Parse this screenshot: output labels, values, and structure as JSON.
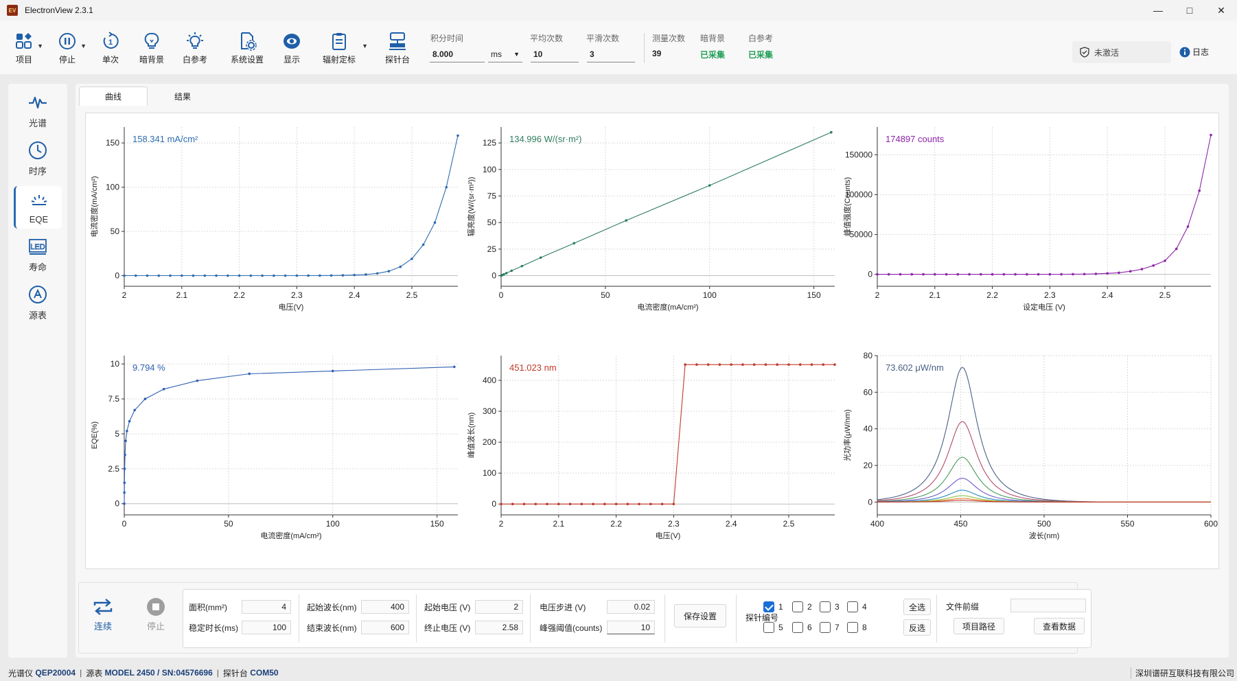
{
  "window": {
    "title": "ElectronView 2.3.1",
    "logo_text": "EV"
  },
  "toolbar": {
    "items": [
      {
        "label": "项目",
        "icon": "grid-icon"
      },
      {
        "label": "停止",
        "icon": "pause-icon"
      },
      {
        "label": "单次",
        "icon": "single-icon"
      },
      {
        "label": "暗背景",
        "icon": "bulb-off-icon"
      },
      {
        "label": "白参考",
        "icon": "bulb-on-icon"
      },
      {
        "label": "系统设置",
        "icon": "settings-doc-icon"
      },
      {
        "label": "显示",
        "icon": "eye-icon"
      },
      {
        "label": "辐射定标",
        "icon": "clipboard-icon"
      },
      {
        "label": "探针台",
        "icon": "probe-station-icon"
      }
    ],
    "integration_time": {
      "label": "积分时间",
      "value": "8.000",
      "unit": "ms"
    },
    "average_count": {
      "label": "平均次数",
      "value": "10"
    },
    "smooth_count": {
      "label": "平滑次数",
      "value": "3"
    },
    "measure_count": {
      "label": "测量次数",
      "value": "39"
    },
    "dark_bg": {
      "label": "暗背景",
      "value": "已采集"
    },
    "white_ref": {
      "label": "白参考",
      "value": "已采集"
    },
    "license": {
      "label": "未激活"
    },
    "log": {
      "label": "日志"
    }
  },
  "nav": [
    {
      "label": "光谱",
      "icon": "spectrum-icon"
    },
    {
      "label": "时序",
      "icon": "clock-icon"
    },
    {
      "label": "EQE",
      "icon": "eqe-icon",
      "active": true
    },
    {
      "label": "寿命",
      "icon": "led-icon"
    },
    {
      "label": "源表",
      "icon": "source-meter-icon"
    }
  ],
  "tabs": [
    {
      "label": "曲线",
      "active": true
    },
    {
      "label": "结果",
      "active": false
    }
  ],
  "chart_data": [
    {
      "type": "line",
      "color": "#2b6cb0",
      "readout": "158.341 mA/cm²",
      "xlabel": "电压(V)",
      "ylabel": "电流密度(mA/cm²)",
      "xlim": [
        2,
        2.58
      ],
      "ylim": [
        -12,
        168
      ],
      "xticks": [
        2,
        2.1,
        2.2,
        2.3,
        2.4,
        2.5
      ],
      "yticks": [
        0,
        50,
        100,
        150
      ],
      "xtick_labels": [
        "2",
        "2.1",
        "2.2",
        "2.3",
        "2.4",
        "2.5"
      ],
      "ytick_labels": [
        "0",
        "50",
        "100",
        "150"
      ],
      "x": [
        2,
        2.02,
        2.04,
        2.06,
        2.08,
        2.1,
        2.12,
        2.14,
        2.16,
        2.18,
        2.2,
        2.22,
        2.24,
        2.26,
        2.28,
        2.3,
        2.32,
        2.34,
        2.36,
        2.38,
        2.4,
        2.42,
        2.44,
        2.46,
        2.48,
        2.5,
        2.52,
        2.54,
        2.56,
        2.58
      ],
      "y": [
        0,
        0,
        0,
        0,
        0,
        0,
        0,
        0,
        0,
        0,
        0,
        0,
        0,
        0,
        0,
        0.02,
        0.05,
        0.1,
        0.2,
        0.35,
        0.7,
        1.3,
        2.5,
        5,
        10,
        19,
        35,
        60,
        100,
        158.3
      ]
    },
    {
      "type": "line",
      "color": "#2e7d5e",
      "readout": "134.996 W/(sr·m²)",
      "xlabel": "电流密度(mA/cm²)",
      "ylabel": "辐亮度(W/(sr·m²))",
      "xlim": [
        0,
        160
      ],
      "ylim": [
        -10,
        140
      ],
      "xticks": [
        0,
        50,
        100,
        150
      ],
      "yticks": [
        0,
        25,
        50,
        75,
        100,
        125
      ],
      "xtick_labels": [
        "0",
        "50",
        "100",
        "150"
      ],
      "ytick_labels": [
        "0",
        "25",
        "50",
        "75",
        "100",
        "125"
      ],
      "x": [
        0,
        0.5,
        1.3,
        2.5,
        5,
        10,
        19,
        35,
        60,
        100,
        158.3
      ],
      "y": [
        0,
        0.5,
        1.2,
        2.3,
        4.6,
        9,
        17,
        30.5,
        52,
        85,
        135
      ]
    },
    {
      "type": "line",
      "color": "#8e24aa",
      "readout": "174897 counts",
      "xlabel": "设定电压 (V)",
      "ylabel": "峰值强度(Counts)",
      "xlim": [
        2,
        2.58
      ],
      "ylim": [
        -15000,
        185000
      ],
      "xticks": [
        2,
        2.1,
        2.2,
        2.3,
        2.4,
        2.5
      ],
      "yticks": [
        0,
        50000,
        100000,
        150000
      ],
      "xtick_labels": [
        "2",
        "2.1",
        "2.2",
        "2.3",
        "2.4",
        "2.5"
      ],
      "ytick_labels": [
        "0",
        "50000",
        "100000",
        "150000"
      ],
      "x": [
        2,
        2.02,
        2.04,
        2.06,
        2.08,
        2.1,
        2.12,
        2.14,
        2.16,
        2.18,
        2.2,
        2.22,
        2.24,
        2.26,
        2.28,
        2.3,
        2.32,
        2.34,
        2.36,
        2.38,
        2.4,
        2.42,
        2.44,
        2.46,
        2.48,
        2.5,
        2.52,
        2.54,
        2.56,
        2.58
      ],
      "y": [
        0,
        0,
        0,
        0,
        0,
        0,
        0,
        0,
        0,
        0,
        0,
        0,
        0,
        0,
        0,
        30,
        70,
        150,
        300,
        600,
        1200,
        2000,
        3800,
        6500,
        11000,
        17000,
        32000,
        60000,
        105000,
        174897
      ]
    },
    {
      "type": "line",
      "color": "#2f5fb3",
      "readout": "9.794 %",
      "xlabel": "电流密度(mA/cm²)",
      "ylabel": "EQE(%)",
      "xlim": [
        0,
        160
      ],
      "ylim": [
        -0.8,
        10.6
      ],
      "xticks": [
        0,
        50,
        100,
        150
      ],
      "yticks": [
        0,
        2.5,
        5,
        7.5,
        10
      ],
      "xtick_labels": [
        "0",
        "50",
        "100",
        "150"
      ],
      "ytick_labels": [
        "0",
        "2.5",
        "5",
        "7.5",
        "10"
      ],
      "x": [
        0,
        0.05,
        0.1,
        0.2,
        0.35,
        0.7,
        1.3,
        2.5,
        5,
        10,
        19,
        35,
        60,
        100,
        158.3
      ],
      "y": [
        0,
        0.8,
        1.5,
        2.5,
        3.5,
        4.5,
        5.2,
        5.9,
        6.7,
        7.5,
        8.2,
        8.8,
        9.3,
        9.5,
        9.794
      ]
    },
    {
      "type": "line",
      "color": "#c0392b",
      "readout": "451.023 nm",
      "xlabel": "电压(V)",
      "ylabel": "峰值波长(nm)",
      "xlim": [
        2,
        2.58
      ],
      "ylim": [
        -35,
        480
      ],
      "xticks": [
        2,
        2.1,
        2.2,
        2.3,
        2.4,
        2.5
      ],
      "yticks": [
        0,
        100,
        200,
        300,
        400
      ],
      "xtick_labels": [
        "2",
        "2.1",
        "2.2",
        "2.3",
        "2.4",
        "2.5"
      ],
      "ytick_labels": [
        "0",
        "100",
        "200",
        "300",
        "400"
      ],
      "x": [
        2,
        2.02,
        2.04,
        2.06,
        2.08,
        2.1,
        2.12,
        2.14,
        2.16,
        2.18,
        2.2,
        2.22,
        2.24,
        2.26,
        2.28,
        2.3,
        2.32,
        2.34,
        2.36,
        2.38,
        2.4,
        2.42,
        2.44,
        2.46,
        2.48,
        2.5,
        2.52,
        2.54,
        2.56,
        2.58
      ],
      "y": [
        0,
        0,
        0,
        0,
        0,
        0,
        0,
        0,
        0,
        0,
        0,
        0,
        0,
        0,
        0,
        0,
        451,
        451,
        451,
        451,
        451,
        451,
        451,
        451,
        451,
        451,
        451,
        451,
        451,
        451
      ]
    },
    {
      "type": "line",
      "readout": "73.602 μW/nm",
      "xlabel": "波长(nm)",
      "ylabel": "光功率(μW/nm)",
      "xlim": [
        400,
        600
      ],
      "ylim": [
        -7,
        80
      ],
      "xticks": [
        400,
        450,
        500,
        550,
        600
      ],
      "yticks": [
        0,
        20,
        40,
        60,
        80
      ],
      "xtick_labels": [
        "400",
        "450",
        "500",
        "550",
        "600"
      ],
      "ytick_labels": [
        "0",
        "20",
        "40",
        "60",
        "80"
      ],
      "peak_x": 451,
      "peak_width": 12,
      "series": [
        {
          "peak": 73.6,
          "color": "#4a5e85"
        },
        {
          "peak": 44,
          "color": "#b24a6b"
        },
        {
          "peak": 24.5,
          "color": "#4a9a5a"
        },
        {
          "peak": 13,
          "color": "#6a5acd"
        },
        {
          "peak": 6.5,
          "color": "#2b8cbe"
        },
        {
          "peak": 3.5,
          "color": "#8bc34a"
        },
        {
          "peak": 2,
          "color": "#e67e22"
        },
        {
          "peak": 1,
          "color": "#c0392b"
        }
      ]
    }
  ],
  "bottom": {
    "continuous": "连续",
    "stop": "停止",
    "area": {
      "label": "面积(mm²)",
      "value": "4"
    },
    "stable_time": {
      "label": "稳定时长(ms)",
      "value": "100"
    },
    "start_wl": {
      "label": "起始波长(nm)",
      "value": "400"
    },
    "end_wl": {
      "label": "结束波长(nm)",
      "value": "600"
    },
    "start_v": {
      "label": "起始电压 (V)",
      "value": "2"
    },
    "end_v": {
      "label": "终止电压 (V)",
      "value": "2.58"
    },
    "step_v": {
      "label": "电压步进 (V)",
      "value": "0.02"
    },
    "peak_threshold": {
      "label": "峰强阈值(counts)",
      "value": "10"
    },
    "save_settings": "保存设置",
    "probe_number": "探针编号",
    "probes": [
      "1",
      "2",
      "3",
      "4",
      "5",
      "6",
      "7",
      "8"
    ],
    "probes_checked": [
      true,
      false,
      false,
      false,
      false,
      false,
      false,
      false
    ],
    "select_all": "全选",
    "invert": "反选",
    "file_prefix": "文件前缀",
    "file_prefix_value": "",
    "project_path": "项目路径",
    "view_data": "查看数据"
  },
  "status": {
    "spectrometer_label": "光谱仪",
    "spectrometer": "QEP20004",
    "source_label": "源表",
    "source": "MODEL 2450 / SN:04576696",
    "probe_label": "探针台",
    "probe": "COM50",
    "company": "深圳谱研互联科技有限公司"
  }
}
